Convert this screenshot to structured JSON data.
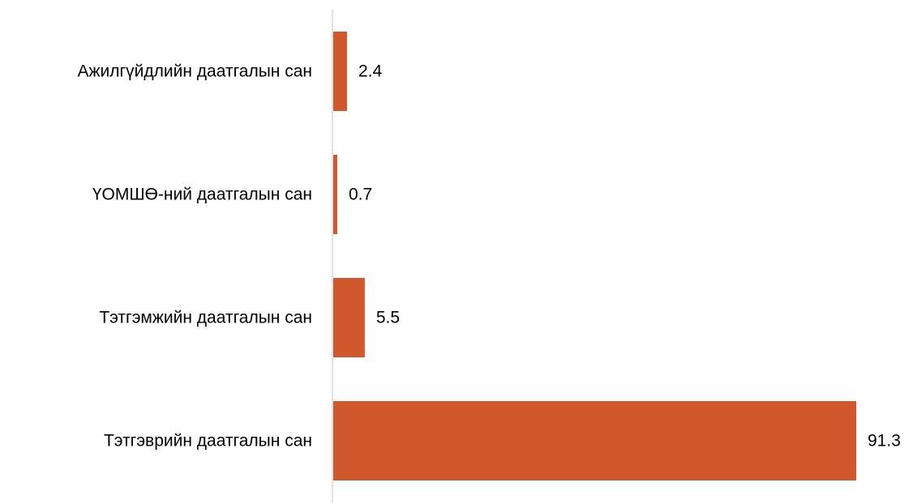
{
  "chart_data": {
    "type": "bar",
    "orientation": "horizontal",
    "categories": [
      "Ажилгүйдлийн даатгалын сан",
      "ҮОМШӨ-ний даатгалын сан",
      "Тэтгэмжийн даатгалын сан",
      "Тэтгэврийн даатгалын сан"
    ],
    "values": [
      2.4,
      0.7,
      5.5,
      91.3
    ],
    "value_labels": [
      "2.4",
      "0.7",
      "5.5",
      "91.3"
    ],
    "xlim": [
      0,
      91.3
    ],
    "grid": false,
    "legend": "none",
    "title": "",
    "xlabel": "",
    "ylabel": ""
  },
  "colors": {
    "bar": "#d0582b",
    "axis": "#d9d9d9",
    "text": "#000000"
  }
}
